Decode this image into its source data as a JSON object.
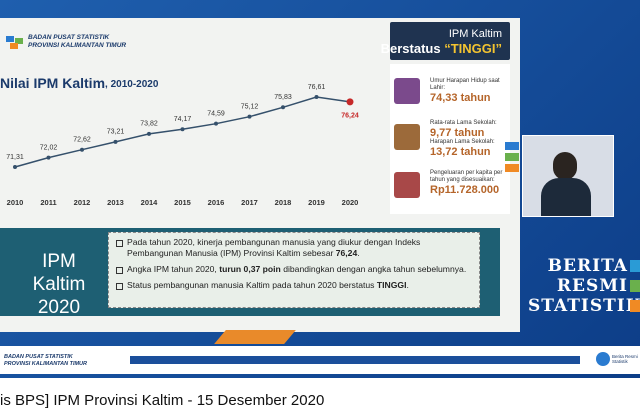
{
  "video": {
    "title": "is BPS] IPM Provinsi Kaltim - 15 Desember 2020"
  },
  "slide": {
    "header": {
      "org": "BADAN PUSAT STATISTIK",
      "region": "PROVINSI KALIMANTAN TIMUR"
    },
    "status": {
      "title": "IPM Kaltim",
      "prefix": "Berstatus",
      "value": "“TINGGI”"
    },
    "indicators": [
      {
        "label": "Umur Harapan Hidup saat Lahir:",
        "value": "74,33 tahun"
      },
      {
        "label": "Rata-rata Lama Sekolah:",
        "value": "9,77 tahun"
      },
      {
        "label": "Harapan Lama Sekolah:",
        "value": "13,72 tahun"
      },
      {
        "label": "Pengeluaran per kapita per tahun yang disesuaikan:",
        "value": "Rp11.728.000"
      }
    ],
    "summary": {
      "title": "IPM Kaltim",
      "year": "2020",
      "bullets": [
        {
          "before": "Pada tahun 2020, kinerja pembangunan manusia yang diukur dengan Indeks Pembangunan Manusia (IPM) Provinsi Kaltim sebesar ",
          "bold": "76,24",
          "after": "."
        },
        {
          "before": "Angka IPM tahun 2020, ",
          "bold": "turun 0,37 poin",
          "after": " dibandingkan dengan angka tahun sebelumnya."
        },
        {
          "before": "Status pembangunan manusia Kaltim pada tahun 2020 berstatus ",
          "bold": "TINGGI",
          "after": "."
        }
      ]
    }
  },
  "chart_data": {
    "type": "line",
    "title": "Nilai IPM Kaltim",
    "subtitle": ", 2010-2020",
    "categories": [
      "2010",
      "2011",
      "2012",
      "2013",
      "2014",
      "2015",
      "2016",
      "2017",
      "2018",
      "2019",
      "2020"
    ],
    "values": [
      71.31,
      72.02,
      72.62,
      73.21,
      73.82,
      74.17,
      74.59,
      75.12,
      75.83,
      76.61,
      76.24
    ],
    "value_labels": [
      "71,31",
      "72,02",
      "72,62",
      "73,21",
      "73,82",
      "74,17",
      "74,59",
      "75,12",
      "75,83",
      "76,61",
      "76,24"
    ],
    "color": "#35506b",
    "last_color": "#c62828"
  },
  "brand": {
    "words": [
      "BERITA",
      "RESMI",
      "STATISTIK"
    ]
  },
  "footer": {
    "org": "BADAN PUSAT STATISTIK",
    "region": "PROVINSI KALIMANTAN TIMUR",
    "brand": "Berita Resmi Statistik"
  }
}
